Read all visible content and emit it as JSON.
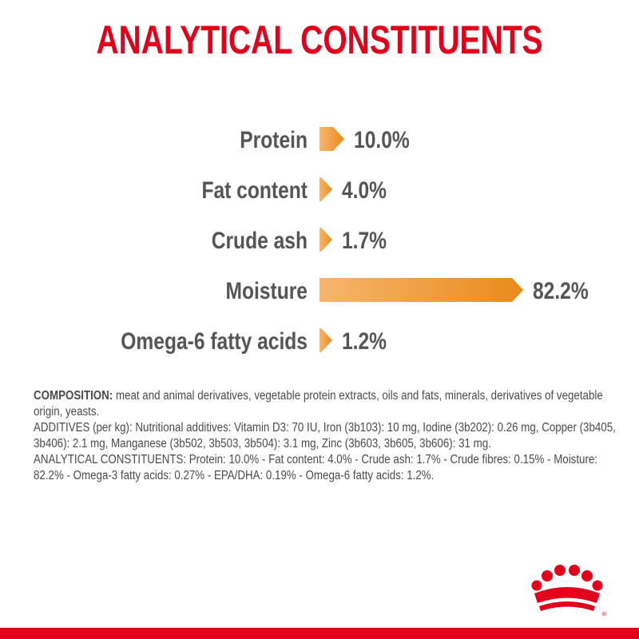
{
  "title": "ANALYTICAL CONSTITUENTS",
  "chart_data": {
    "type": "bar",
    "orientation": "horizontal",
    "categories": [
      "Protein",
      "Fat content",
      "Crude ash",
      "Moisture",
      "Omega-6 fatty acids"
    ],
    "values": [
      10.0,
      4.0,
      1.7,
      82.2,
      1.2
    ],
    "value_labels": [
      "10.0%",
      "4.0%",
      "1.7%",
      "82.2%",
      "1.2%"
    ],
    "unit": "%",
    "xlim": [
      0,
      82.2
    ],
    "bar_color_start": "#f6b66e",
    "bar_color_end": "#ea8a1b",
    "label_color": "#555555"
  },
  "composition": {
    "heading": "COMPOSITION:",
    "text": " meat and animal derivatives, vegetable protein extracts, oils and fats, minerals, derivatives of vegetable origin, yeasts.",
    "additives": "ADDITIVES (per kg): Nutritional additives: Vitamin D3: 70 IU, Iron (3b103): 10 mg, Iodine (3b202): 0.26 mg, Copper (3b405, 3b406): 2.1 mg, Manganese (3b502, 3b503, 3b504): 3.1 mg, Zinc (3b603, 3b605, 3b606): 31 mg.",
    "analytical": "ANALYTICAL CONSTITUENTS: Protein: 10.0% - Fat content: 4.0% - Crude ash: 1.7% - Crude fibres: 0.15% - Moisture: 82.2% - Omega-3 fatty acids: 0.27% - EPA/DHA: 0.19% - Omega-6 fatty acids: 1.2%."
  },
  "brand_color": "#e2001a",
  "logo_icon": "crown-logo-icon"
}
